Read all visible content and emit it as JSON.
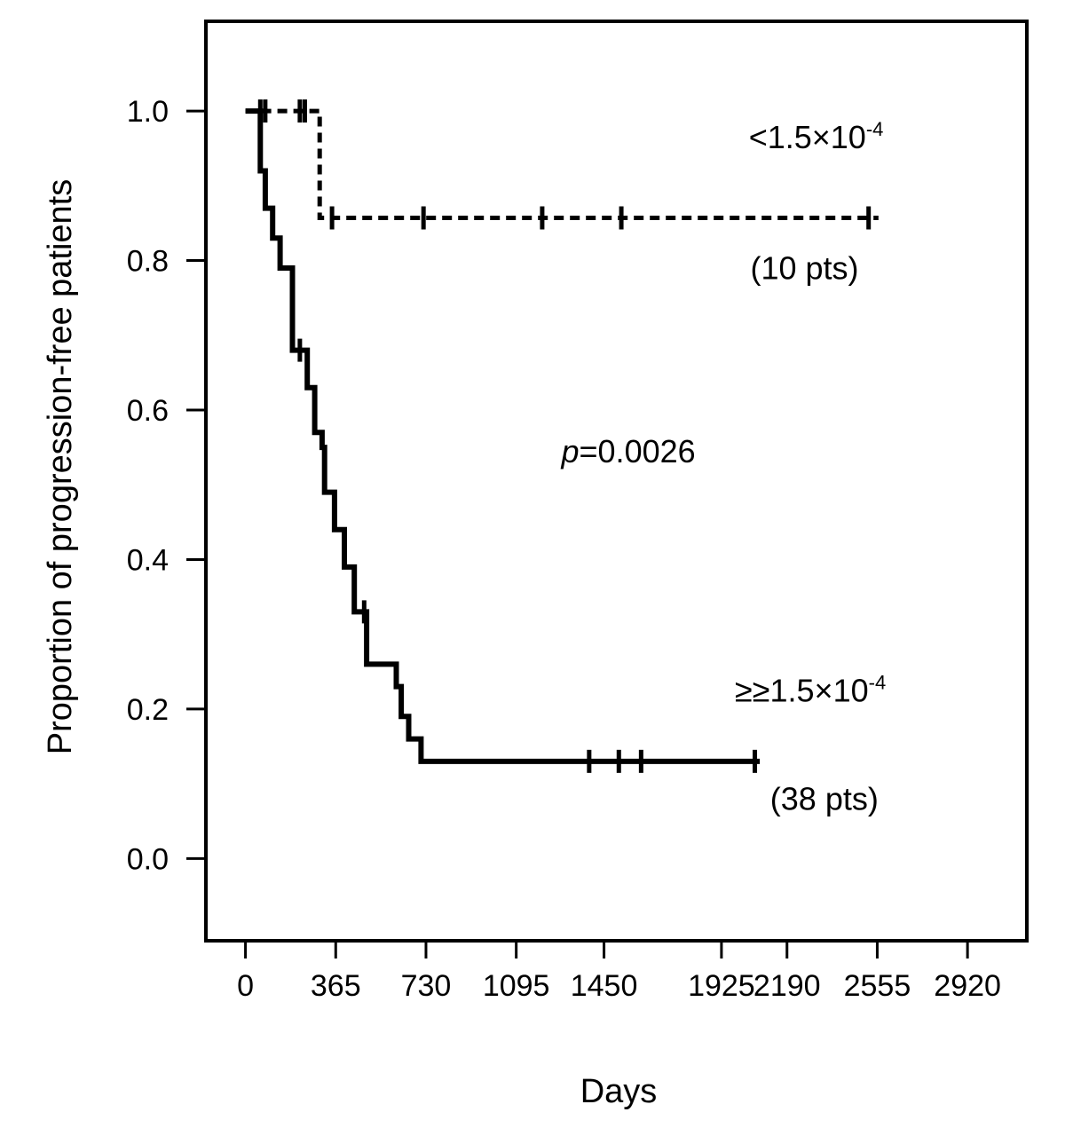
{
  "chart_data": {
    "type": "line",
    "subtype": "kaplan-meier step curve",
    "xlabel": "Days",
    "ylabel": "Proportion of progression-free patients",
    "x_ticks": [
      0,
      365,
      730,
      1095,
      1450,
      1925,
      2190,
      2555,
      2920
    ],
    "x_tick_labels": [
      "0",
      "365",
      "730",
      "1095",
      "1450",
      "1925",
      "2190",
      "2555",
      "2920"
    ],
    "y_ticks": [
      0.0,
      0.2,
      0.4,
      0.6,
      0.8,
      1.0
    ],
    "y_tick_labels": [
      "0.0",
      "0.2",
      "0.4",
      "0.6",
      "0.8",
      "1.0"
    ],
    "xlim": [
      -160,
      3160
    ],
    "ylim": [
      -0.11,
      1.12
    ],
    "grid": false,
    "series": [
      {
        "name": "<1.5×10-4",
        "line_style": "dashed",
        "steps": [
          [
            0,
            1.0
          ],
          [
            300,
            1.0
          ],
          [
            300,
            0.857
          ],
          [
            2560,
            0.857
          ]
        ],
        "censored": [
          [
            60,
            1.0
          ],
          [
            80,
            1.0
          ],
          [
            220,
            1.0
          ],
          [
            240,
            1.0
          ],
          [
            350,
            0.857
          ],
          [
            720,
            0.857
          ],
          [
            1200,
            0.857
          ],
          [
            1520,
            0.857
          ],
          [
            2520,
            0.857
          ]
        ]
      },
      {
        "name": "≥1.5×10-4",
        "line_style": "solid",
        "steps": [
          [
            0,
            1.0
          ],
          [
            60,
            1.0
          ],
          [
            60,
            0.92
          ],
          [
            80,
            0.92
          ],
          [
            80,
            0.87
          ],
          [
            110,
            0.87
          ],
          [
            110,
            0.83
          ],
          [
            140,
            0.83
          ],
          [
            140,
            0.79
          ],
          [
            190,
            0.79
          ],
          [
            190,
            0.68
          ],
          [
            250,
            0.68
          ],
          [
            250,
            0.63
          ],
          [
            280,
            0.63
          ],
          [
            280,
            0.57
          ],
          [
            310,
            0.57
          ],
          [
            310,
            0.55
          ],
          [
            320,
            0.55
          ],
          [
            320,
            0.49
          ],
          [
            360,
            0.49
          ],
          [
            360,
            0.44
          ],
          [
            400,
            0.44
          ],
          [
            400,
            0.39
          ],
          [
            440,
            0.39
          ],
          [
            440,
            0.33
          ],
          [
            490,
            0.33
          ],
          [
            490,
            0.26
          ],
          [
            610,
            0.26
          ],
          [
            610,
            0.23
          ],
          [
            630,
            0.23
          ],
          [
            630,
            0.19
          ],
          [
            660,
            0.19
          ],
          [
            660,
            0.16
          ],
          [
            710,
            0.16
          ],
          [
            710,
            0.13
          ],
          [
            2080,
            0.13
          ]
        ],
        "censored": [
          [
            220,
            0.68
          ],
          [
            480,
            0.33
          ],
          [
            1390,
            0.13
          ],
          [
            1510,
            0.13
          ],
          [
            1600,
            0.13
          ],
          [
            2060,
            0.13
          ]
        ]
      }
    ],
    "annotations": [
      {
        "text_main": "<1.5×10",
        "text_sup": "-4",
        "x": 2580,
        "y": 0.95
      },
      {
        "text_main": "(10 pts)",
        "x": 2480,
        "y": 0.775
      },
      {
        "text_italic": "p",
        "text_main": "=0.0026",
        "x": 1820,
        "y": 0.53
      },
      {
        "text_main": "≥≥1.5×10",
        "text_sup": "-4",
        "x": 2590,
        "y": 0.21
      },
      {
        "text_main": "(38 pts)",
        "x": 2560,
        "y": 0.065
      }
    ]
  }
}
